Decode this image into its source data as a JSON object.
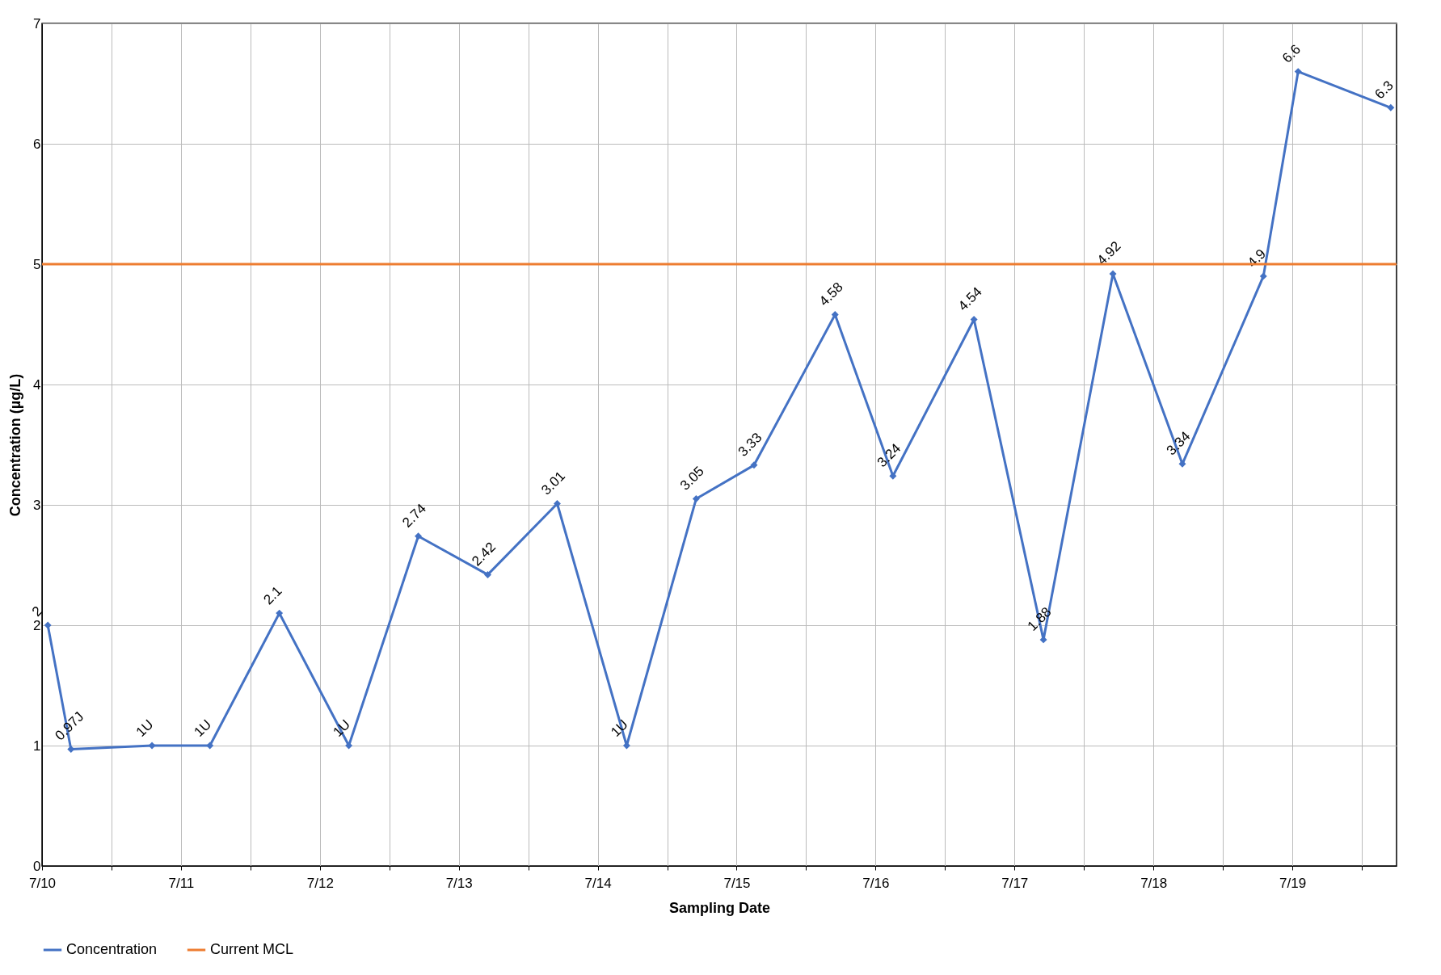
{
  "chart_data": {
    "type": "line",
    "xlabel": "Sampling Date",
    "ylabel": "Concentration (µg/L)",
    "x": [
      "--07-10T01:00",
      "--07-10T05:00",
      "--07-10T19:00",
      "--07-11T05:00",
      "--07-11T17:00",
      "--07-12T05:00",
      "--07-12T17:00",
      "--07-13T05:00",
      "--07-13T17:00",
      "--07-14T05:00",
      "--07-14T17:00",
      "--07-15T03:00",
      "--07-15T17:00",
      "--07-16T03:00",
      "--07-16T17:00",
      "--07-17T05:00",
      "--07-17T17:00",
      "--07-18T05:00",
      "--07-18T19:00",
      "--07-19T01:00",
      "--07-19T17:00"
    ],
    "series": [
      {
        "name": "Concentration",
        "color": "#4472c4",
        "values": [
          2,
          0.97,
          1,
          1,
          2.1,
          1,
          2.74,
          2.42,
          3.01,
          1,
          3.05,
          3.33,
          4.58,
          3.24,
          4.54,
          1.88,
          4.92,
          3.34,
          4.9,
          6.6,
          6.3
        ],
        "value_labels": [
          "2",
          "0.97J",
          "1U",
          "1U",
          "2.1",
          "1U",
          "2.74",
          "2.42",
          "3.01",
          "1U",
          "3.05",
          "3.33",
          "4.58",
          "3.24",
          "4.54",
          "1.88",
          "4.92",
          "3.34",
          "4.9",
          "6.6",
          "6.3"
        ]
      }
    ],
    "ref_lines": [
      {
        "axis": "y",
        "value": 5,
        "label": "Current MCL",
        "color": "#ed7d31"
      }
    ],
    "xlim": [
      "--07-10",
      "--07-19T18:00"
    ],
    "xticks": [
      {
        "value": "--07-10",
        "label": "7/10"
      },
      {
        "value": "--07-10T12:00",
        "label": null
      },
      {
        "value": "--07-11",
        "label": "7/11"
      },
      {
        "value": "--07-11T12:00",
        "label": null
      },
      {
        "value": "--07-12",
        "label": "7/12"
      },
      {
        "value": "--07-12T12:00",
        "label": null
      },
      {
        "value": "--07-13",
        "label": "7/13"
      },
      {
        "value": "--07-13T12:00",
        "label": null
      },
      {
        "value": "--07-14",
        "label": "7/14"
      },
      {
        "value": "--07-14T12:00",
        "label": null
      },
      {
        "value": "--07-15",
        "label": "7/15"
      },
      {
        "value": "--07-15T12:00",
        "label": null
      },
      {
        "value": "--07-16",
        "label": "7/16"
      },
      {
        "value": "--07-16T12:00",
        "label": null
      },
      {
        "value": "--07-17",
        "label": "7/17"
      },
      {
        "value": "--07-17T12:00",
        "label": null
      },
      {
        "value": "--07-18",
        "label": "7/18"
      },
      {
        "value": "--07-18T12:00",
        "label": null
      },
      {
        "value": "--07-19",
        "label": "7/19"
      },
      {
        "value": "--07-19T12:00",
        "label": null
      }
    ],
    "ylim": [
      0,
      7
    ],
    "yticks": [
      0,
      1,
      2,
      3,
      4,
      5,
      6,
      7
    ],
    "grid": true,
    "legend": "bottom",
    "marker": "diamond",
    "line_style": "solid"
  }
}
